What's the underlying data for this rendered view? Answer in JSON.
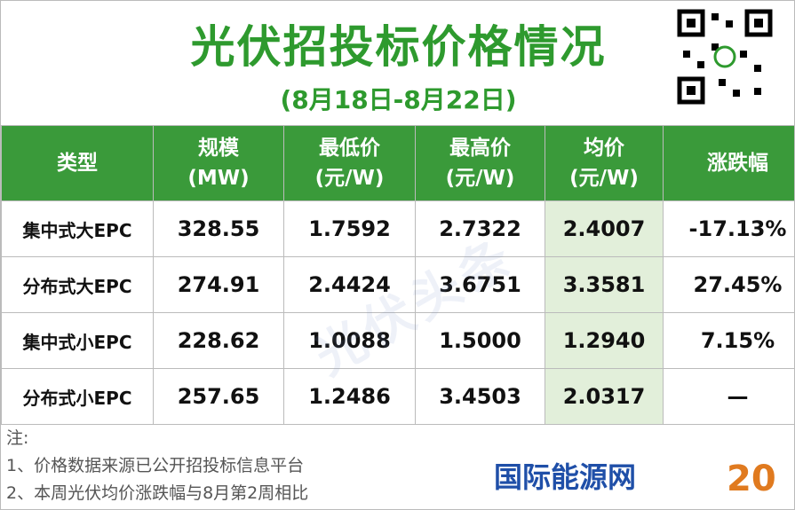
{
  "header": {
    "title": "光伏招投标价格情况",
    "subtitle": "(8月18日-8月22日)"
  },
  "table": {
    "headers": [
      [
        "类型"
      ],
      [
        "规模",
        "(MW)"
      ],
      [
        "最低价",
        "(元/W)"
      ],
      [
        "最高价",
        "(元/W)"
      ],
      [
        "均价",
        "(元/W)"
      ],
      [
        "涨跌幅"
      ]
    ],
    "rows": [
      [
        "集中式大EPC",
        "328.55",
        "1.7592",
        "2.7322",
        "2.4007",
        "-17.13%"
      ],
      [
        "分布式大EPC",
        "274.91",
        "2.4424",
        "3.6751",
        "3.3581",
        "27.45%"
      ],
      [
        "集中式小EPC",
        "228.62",
        "1.0088",
        "1.5000",
        "1.2940",
        "7.15%"
      ],
      [
        "分布式小EPC",
        "257.65",
        "1.2486",
        "3.4503",
        "2.0317",
        "—"
      ]
    ]
  },
  "watermark": "光伏头条",
  "notes": [
    "注:",
    "1、价格数据来源已公开招投标信息平台",
    "2、本周光伏均价涨跌幅与8月第2周相比"
  ],
  "logo": "国际能源网"
}
